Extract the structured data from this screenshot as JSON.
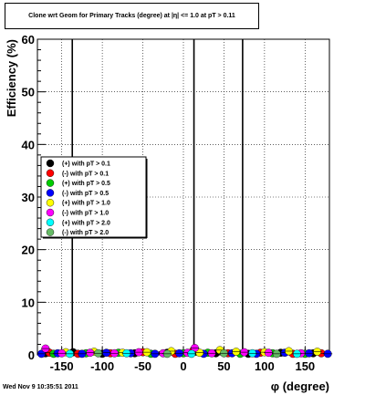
{
  "chart_data": {
    "type": "scatter",
    "title": "Clone wrt Geom for Primary Tracks (degree) at |η| <= 1.0 at pT > 0.11",
    "xlabel": "φ (degree)",
    "ylabel": "Efficiency (%)",
    "xlim": [
      -180,
      180
    ],
    "ylim": [
      0,
      60
    ],
    "x_ticks": [
      -150,
      -100,
      -50,
      0,
      50,
      100,
      150
    ],
    "y_ticks": [
      0,
      10,
      20,
      30,
      40,
      50,
      60
    ],
    "grid": true,
    "legend_position": "middle-left",
    "series": [
      {
        "name": "(+) with pT > 0.1",
        "color": "#000000",
        "x": [
          -170,
          -136,
          -100,
          -60,
          -20,
          15,
          40,
          80,
          120,
          160
        ],
        "y": [
          0.3,
          0.5,
          0.2,
          0.3,
          0.4,
          0.6,
          0.3,
          0.2,
          0.4,
          0.3
        ]
      },
      {
        "name": "(-) with pT > 0.1",
        "color": "#ff0000",
        "x": [
          -165,
          -130,
          -90,
          -50,
          -10,
          12,
          55,
          95,
          135,
          170
        ],
        "y": [
          0.4,
          0.2,
          0.3,
          0.5,
          0.2,
          0.8,
          0.3,
          0.4,
          0.2,
          0.3
        ]
      },
      {
        "name": "(+) with pT > 0.5",
        "color": "#00cc00",
        "x": [
          -160,
          -120,
          -80,
          -40,
          0,
          30,
          70,
          110,
          150
        ],
        "y": [
          0.2,
          0.3,
          0.4,
          0.2,
          0.3,
          0.4,
          0.2,
          0.3,
          0.2
        ]
      },
      {
        "name": "(-) with pT > 0.5",
        "color": "#0000ff",
        "x": [
          -175,
          -155,
          -125,
          -95,
          -65,
          -35,
          -5,
          25,
          60,
          90,
          125,
          155,
          178
        ],
        "y": [
          0.2,
          0.3,
          0.2,
          0.4,
          0.3,
          0.2,
          0.3,
          0.2,
          0.3,
          0.2,
          0.4,
          0.3,
          0.2
        ]
      },
      {
        "name": "(+) with pT > 1.0",
        "color": "#ffff00",
        "x": [
          -145,
          -110,
          -75,
          -45,
          -15,
          20,
          45,
          65,
          100,
          130,
          165
        ],
        "y": [
          0.5,
          0.6,
          0.4,
          0.5,
          0.7,
          0.4,
          0.9,
          0.6,
          0.5,
          0.7,
          0.6
        ]
      },
      {
        "name": "(-) with pT > 1.0",
        "color": "#ff00ff",
        "x": [
          -170,
          -150,
          -115,
          -85,
          -55,
          -25,
          5,
          14,
          35,
          75,
          105,
          145
        ],
        "y": [
          1.2,
          0.3,
          0.4,
          0.3,
          0.5,
          0.3,
          0.4,
          1.3,
          0.3,
          0.5,
          0.4,
          0.3
        ]
      },
      {
        "name": "(+) with pT > 2.0",
        "color": "#00ffff",
        "x": [
          -140,
          -70,
          10,
          85,
          140
        ],
        "y": [
          0.2,
          0.3,
          0.2,
          0.3,
          0.2
        ]
      },
      {
        "name": "(-) with pT > 2.0",
        "color": "#66bb66",
        "x": [
          -105,
          -20,
          50,
          115
        ],
        "y": [
          0.3,
          0.2,
          0.3,
          0.2
        ]
      }
    ],
    "spikes": [
      {
        "x": -137,
        "y": 60
      },
      {
        "x": 13,
        "y": 60
      },
      {
        "x": 73,
        "y": 60
      }
    ]
  },
  "footer": "Wed Nov  9 10:35:51 2011"
}
